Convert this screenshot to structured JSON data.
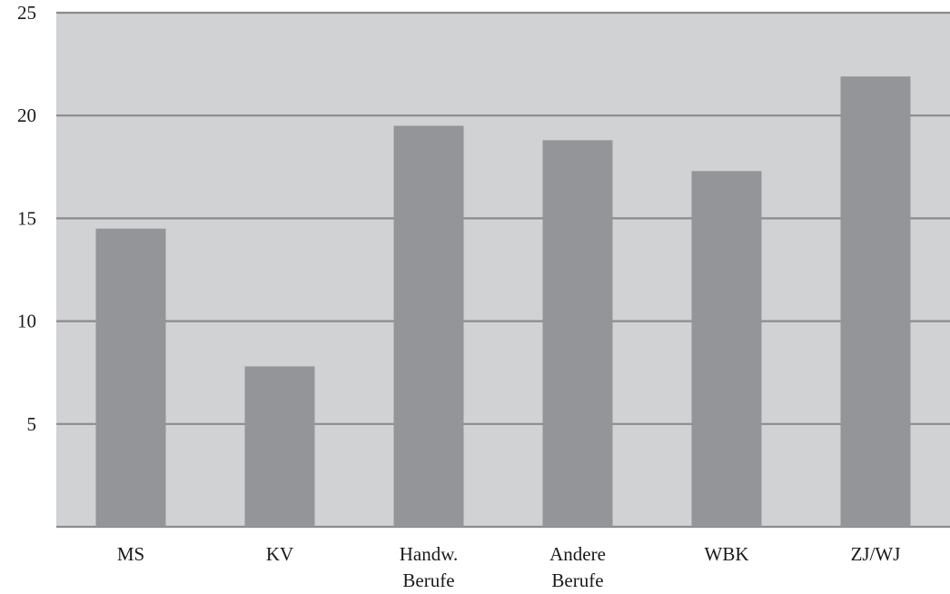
{
  "chart_data": {
    "type": "bar",
    "categories": [
      [
        "MS"
      ],
      [
        "KV"
      ],
      [
        "Handw.",
        "Berufe"
      ],
      [
        "Andere",
        "Berufe"
      ],
      [
        "WBK"
      ],
      [
        "ZJ/WJ"
      ]
    ],
    "values": [
      14.5,
      7.8,
      19.5,
      18.8,
      17.3,
      21.9
    ],
    "title": "",
    "xlabel": "",
    "ylabel": "",
    "ylim": [
      0,
      25
    ],
    "yticks": [
      5,
      10,
      15,
      20,
      25
    ],
    "ytick_labels": [
      "5",
      "10",
      "15",
      "20",
      "25"
    ],
    "grid": true,
    "colors": {
      "plot_background": "#d1d2d4",
      "bar": "#939598",
      "gridline": "#8a8b8d",
      "text": "#1a1a1a"
    }
  }
}
